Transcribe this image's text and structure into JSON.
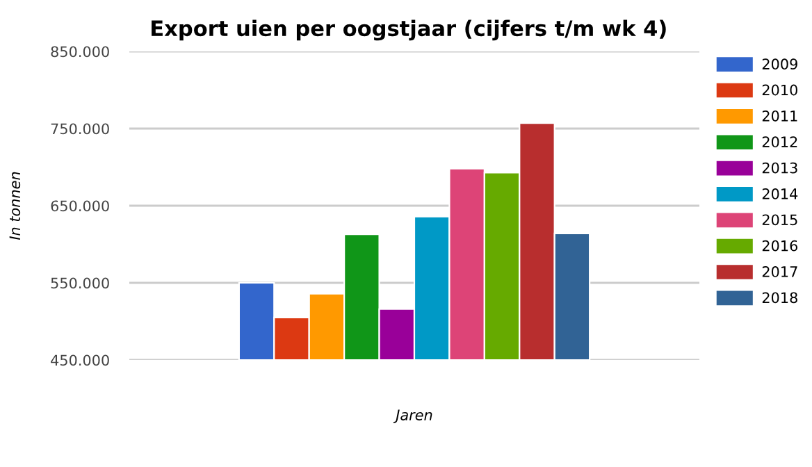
{
  "chart_data": {
    "type": "bar",
    "title": "Export uien per oogstjaar (cijfers t/m wk 4)",
    "xlabel": "Jaren",
    "ylabel": "In tonnen",
    "categories": [
      null
    ],
    "series": [
      {
        "name": "2009",
        "color": "#3366cc",
        "values": [
          550000
        ]
      },
      {
        "name": "2010",
        "color": "#dc3912",
        "values": [
          505000
        ]
      },
      {
        "name": "2011",
        "color": "#ff9900",
        "values": [
          536000
        ]
      },
      {
        "name": "2012",
        "color": "#109618",
        "values": [
          613000
        ]
      },
      {
        "name": "2013",
        "color": "#990099",
        "values": [
          516000
        ]
      },
      {
        "name": "2014",
        "color": "#0099c6",
        "values": [
          636000
        ]
      },
      {
        "name": "2015",
        "color": "#dd4477",
        "values": [
          698000
        ]
      },
      {
        "name": "2016",
        "color": "#66aa00",
        "values": [
          693000
        ]
      },
      {
        "name": "2017",
        "color": "#b82e2e",
        "values": [
          757000
        ]
      },
      {
        "name": "2018",
        "color": "#316395",
        "values": [
          614000
        ]
      }
    ],
    "ylim": [
      450000,
      850000
    ],
    "yticks": [
      {
        "value": 450000,
        "label": "450.000"
      },
      {
        "value": 550000,
        "label": "550.000"
      },
      {
        "value": 650000,
        "label": "650.000"
      },
      {
        "value": 750000,
        "label": "750.000"
      },
      {
        "value": 850000,
        "label": "850.000"
      }
    ],
    "grid": "y",
    "legend": "right"
  }
}
